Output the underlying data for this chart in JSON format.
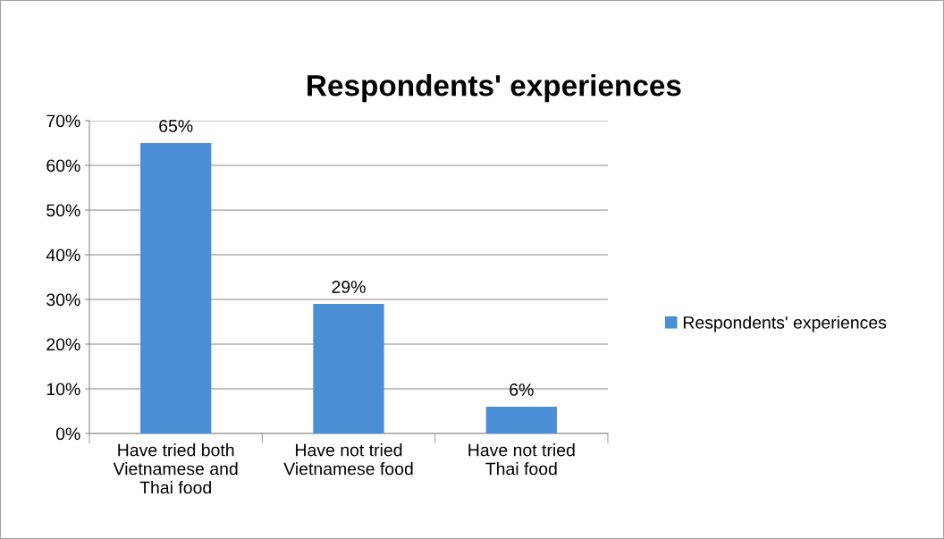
{
  "chart_data": {
    "type": "bar",
    "title": "Respondents' experiences",
    "categories": [
      "Have tried both\nVietnamese and\nThai food",
      "Have not tried\nVietnamese food",
      "Have not tried\nThai food"
    ],
    "series": [
      {
        "name": "Respondents' experiences",
        "color": "#4a8fd6",
        "values": [
          65,
          29,
          6
        ],
        "value_labels": [
          "65%",
          "29%",
          "6%"
        ]
      }
    ],
    "ylim": [
      0,
      70
    ],
    "yticks": [
      {
        "value": 0,
        "label": "0%"
      },
      {
        "value": 10,
        "label": "10%"
      },
      {
        "value": 20,
        "label": "20%"
      },
      {
        "value": 30,
        "label": "30%"
      },
      {
        "value": 40,
        "label": "40%"
      },
      {
        "value": 50,
        "label": "50%"
      },
      {
        "value": 60,
        "label": "60%"
      },
      {
        "value": 70,
        "label": "70%"
      }
    ],
    "grid": "y",
    "legend": "right"
  }
}
